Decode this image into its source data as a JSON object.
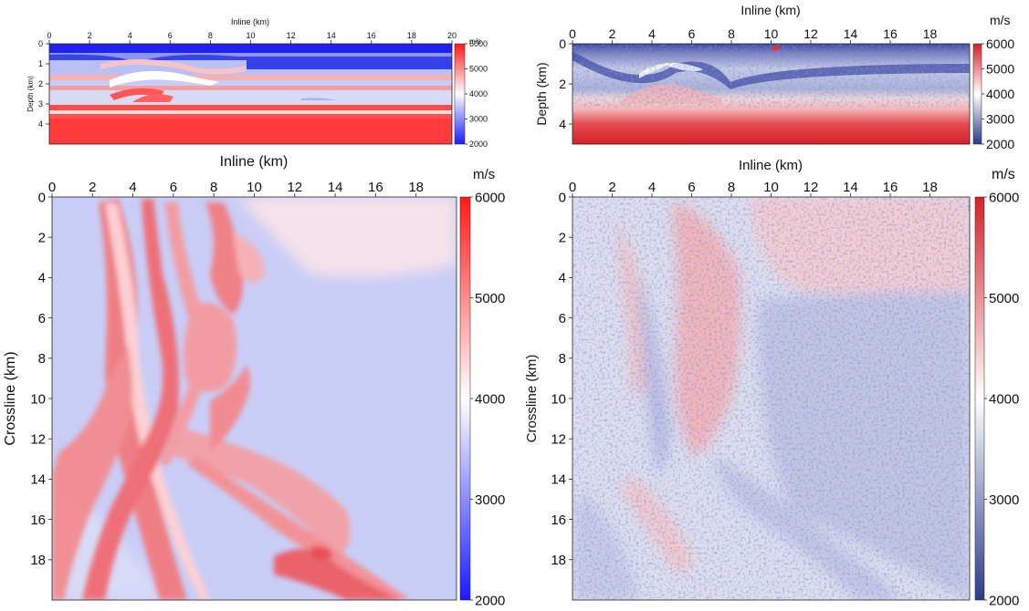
{
  "colors": {
    "low": "#1f2bff",
    "mid": "#ffffff",
    "high": "#ff2a2a",
    "low_recon": "#2e3a8c",
    "high_recon": "#d91e2a"
  },
  "chart_data": [
    {
      "id": "true_section",
      "type": "heatmap",
      "title": "",
      "xlabel": "Inline (km)",
      "ylabel": "Depth (km)",
      "xlim": [
        0,
        20
      ],
      "ylim": [
        0,
        5
      ],
      "xticks": [
        "0",
        "2",
        "4",
        "6",
        "8",
        "10",
        "12",
        "14",
        "16",
        "18",
        "20"
      ],
      "yticks": [
        "0",
        "1",
        "2",
        "3",
        "4"
      ],
      "colorbar": {
        "unit": "m/s",
        "range": [
          2000,
          6000
        ],
        "ticks": [
          "6000",
          "5000",
          "4000",
          "3000",
          "2000"
        ],
        "cmap": "blue-white-red"
      },
      "layers_depth_km": [
        {
          "top": 0.0,
          "bottom": 0.18,
          "velocity": 2100
        },
        {
          "top": 0.18,
          "bottom": 0.5,
          "velocity": 3200
        },
        {
          "top": 0.5,
          "bottom": 1.6,
          "velocity": 3500
        },
        {
          "top": 1.6,
          "bottom": 2.4,
          "velocity": 4300
        },
        {
          "top": 2.4,
          "bottom": 3.0,
          "velocity": 3900
        },
        {
          "top": 3.0,
          "bottom": 3.4,
          "velocity": 5500
        },
        {
          "top": 3.4,
          "bottom": 5.0,
          "velocity": 5900
        }
      ]
    },
    {
      "id": "recon_section",
      "type": "heatmap",
      "title": "",
      "xlabel": "Inline (km)",
      "ylabel": "Depth (km)",
      "xlim": [
        0,
        20
      ],
      "ylim": [
        0,
        5
      ],
      "xticks": [
        "0",
        "2",
        "4",
        "6",
        "8",
        "10",
        "12",
        "14",
        "16",
        "18"
      ],
      "yticks": [
        "0",
        "2",
        "4"
      ],
      "colorbar": {
        "unit": "m/s",
        "range": [
          2000,
          6000
        ],
        "ticks": [
          "6000",
          "5000",
          "4000",
          "3000",
          "2000"
        ],
        "cmap": "blue-white-red"
      }
    },
    {
      "id": "true_depth_slice",
      "type": "heatmap",
      "title": "",
      "xlabel": "Inline (km)",
      "ylabel": "Crossline (km)",
      "xlim": [
        0,
        20
      ],
      "ylim": [
        0,
        20
      ],
      "xticks": [
        "0",
        "2",
        "4",
        "6",
        "8",
        "10",
        "12",
        "14",
        "16",
        "18"
      ],
      "yticks": [
        "0",
        "2",
        "4",
        "6",
        "8",
        "10",
        "12",
        "14",
        "16",
        "18"
      ],
      "colorbar": {
        "unit": "m/s",
        "range": [
          2000,
          6000
        ],
        "ticks": [
          "6000",
          "5000",
          "4000",
          "3000",
          "2000"
        ],
        "cmap": "blue-white-red"
      },
      "background_velocity": 3600,
      "high_velocity_bodies": 5200
    },
    {
      "id": "recon_depth_slice",
      "type": "heatmap",
      "title": "",
      "xlabel": "Inline (km)",
      "ylabel": "Crossline (km)",
      "xlim": [
        0,
        20
      ],
      "ylim": [
        0,
        20
      ],
      "xticks": [
        "0",
        "2",
        "4",
        "6",
        "8",
        "10",
        "12",
        "14",
        "16",
        "18"
      ],
      "yticks": [
        "0",
        "2",
        "4",
        "6",
        "8",
        "10",
        "12",
        "14",
        "16",
        "18"
      ],
      "colorbar": {
        "unit": "m/s",
        "range": [
          2000,
          6000
        ],
        "ticks": [
          "6000",
          "5000",
          "4000",
          "3000",
          "2000"
        ],
        "cmap": "blue-white-red"
      }
    }
  ]
}
